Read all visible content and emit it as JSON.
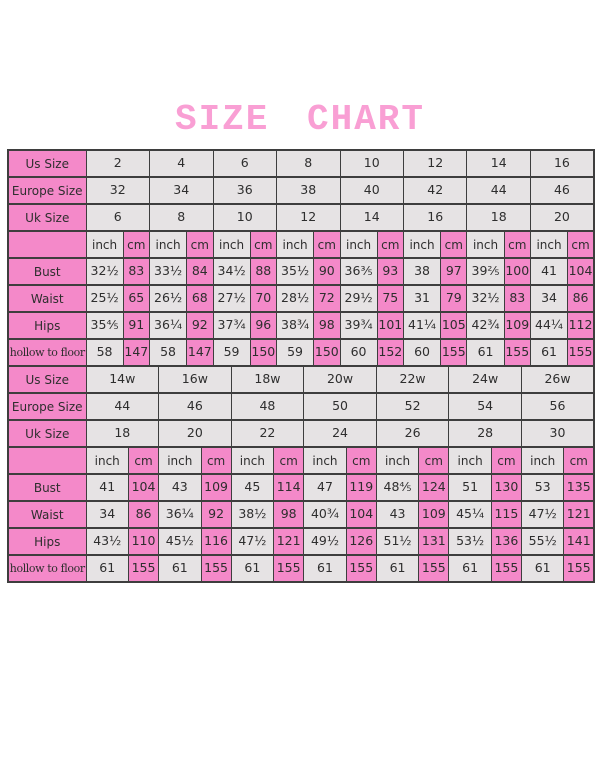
{
  "title": "SIZE CHART",
  "colors": {
    "cell_pink": "#f489c9",
    "cell_grey": "#e6e3e4",
    "border": "#3e3e3e",
    "title_pink": "#f99fd4",
    "text": "#2e2e2e",
    "background": "#ffffff"
  },
  "chart_data": [
    {
      "type": "table",
      "name": "standard-sizes",
      "units": [
        "inch",
        "cm"
      ],
      "size_rows": [
        {
          "label": "Us Size",
          "values": [
            "2",
            "4",
            "6",
            "8",
            "10",
            "12",
            "14",
            "16"
          ]
        },
        {
          "label": "Europe Size",
          "values": [
            "32",
            "34",
            "36",
            "38",
            "40",
            "42",
            "44",
            "46"
          ]
        },
        {
          "label": "Uk Size",
          "values": [
            "6",
            "8",
            "10",
            "12",
            "14",
            "16",
            "18",
            "20"
          ]
        }
      ],
      "measure_rows": [
        {
          "label": "Bust",
          "pairs": [
            [
              "32½",
              "83"
            ],
            [
              "33½",
              "84"
            ],
            [
              "34½",
              "88"
            ],
            [
              "35½",
              "90"
            ],
            [
              "36⅗",
              "93"
            ],
            [
              "38",
              "97"
            ],
            [
              "39⅖",
              "100"
            ],
            [
              "41",
              "104"
            ]
          ]
        },
        {
          "label": "Waist",
          "pairs": [
            [
              "25½",
              "65"
            ],
            [
              "26½",
              "68"
            ],
            [
              "27½",
              "70"
            ],
            [
              "28½",
              "72"
            ],
            [
              "29½",
              "75"
            ],
            [
              "31",
              "79"
            ],
            [
              "32½",
              "83"
            ],
            [
              "34",
              "86"
            ]
          ]
        },
        {
          "label": "Hips",
          "pairs": [
            [
              "35⅘",
              "91"
            ],
            [
              "36¼",
              "92"
            ],
            [
              "37¾",
              "96"
            ],
            [
              "38¾",
              "98"
            ],
            [
              "39¾",
              "101"
            ],
            [
              "41¼",
              "105"
            ],
            [
              "42¾",
              "109"
            ],
            [
              "44¼",
              "112"
            ]
          ]
        },
        {
          "label": "hollow to floor",
          "pairs": [
            [
              "58",
              "147"
            ],
            [
              "58",
              "147"
            ],
            [
              "59",
              "150"
            ],
            [
              "59",
              "150"
            ],
            [
              "60",
              "152"
            ],
            [
              "60",
              "155"
            ],
            [
              "61",
              "155"
            ],
            [
              "61",
              "155"
            ]
          ]
        }
      ]
    },
    {
      "type": "table",
      "name": "plus-sizes",
      "units": [
        "inch",
        "cm"
      ],
      "size_rows": [
        {
          "label": "Us Size",
          "values": [
            "14w",
            "16w",
            "18w",
            "20w",
            "22w",
            "24w",
            "26w"
          ]
        },
        {
          "label": "Europe Size",
          "values": [
            "44",
            "46",
            "48",
            "50",
            "52",
            "54",
            "56"
          ]
        },
        {
          "label": "Uk Size",
          "values": [
            "18",
            "20",
            "22",
            "24",
            "26",
            "28",
            "30"
          ]
        }
      ],
      "measure_rows": [
        {
          "label": "Bust",
          "pairs": [
            [
              "41",
              "104"
            ],
            [
              "43",
              "109"
            ],
            [
              "45",
              "114"
            ],
            [
              "47",
              "119"
            ],
            [
              "48⅘",
              "124"
            ],
            [
              "51",
              "130"
            ],
            [
              "53",
              "135"
            ]
          ]
        },
        {
          "label": "Waist",
          "pairs": [
            [
              "34",
              "86"
            ],
            [
              "36¼",
              "92"
            ],
            [
              "38½",
              "98"
            ],
            [
              "40¾",
              "104"
            ],
            [
              "43",
              "109"
            ],
            [
              "45¼",
              "115"
            ],
            [
              "47½",
              "121"
            ]
          ]
        },
        {
          "label": "Hips",
          "pairs": [
            [
              "43½",
              "110"
            ],
            [
              "45½",
              "116"
            ],
            [
              "47½",
              "121"
            ],
            [
              "49½",
              "126"
            ],
            [
              "51½",
              "131"
            ],
            [
              "53½",
              "136"
            ],
            [
              "55½",
              "141"
            ]
          ]
        },
        {
          "label": "hollow to floor",
          "pairs": [
            [
              "61",
              "155"
            ],
            [
              "61",
              "155"
            ],
            [
              "61",
              "155"
            ],
            [
              "61",
              "155"
            ],
            [
              "61",
              "155"
            ],
            [
              "61",
              "155"
            ],
            [
              "61",
              "155"
            ]
          ]
        }
      ]
    }
  ]
}
